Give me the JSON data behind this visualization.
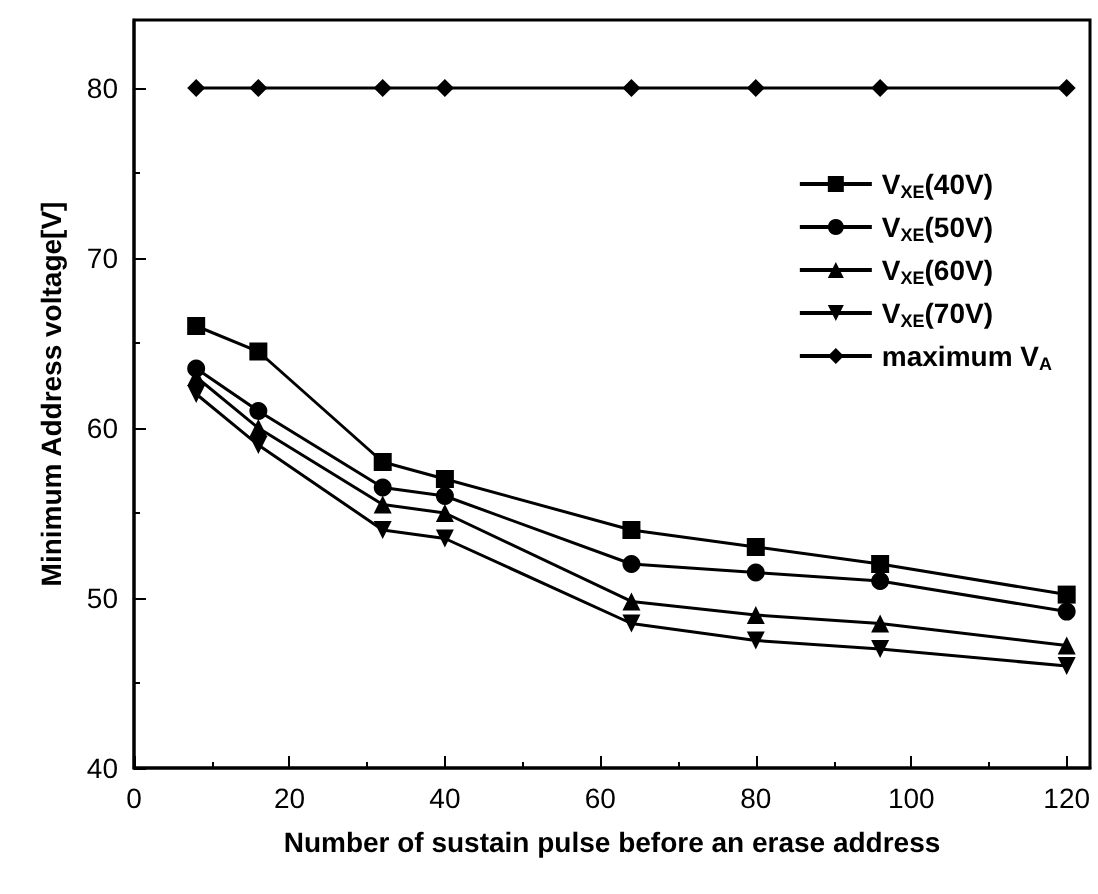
{
  "chart_data": {
    "type": "line",
    "xlabel": "Number of sustain pulse before an erase address",
    "ylabel": "Minimum Address voltage[V]",
    "x": [
      8,
      16,
      32,
      40,
      64,
      80,
      96,
      120
    ],
    "series": [
      {
        "name": "V$_{XE}$(40V)",
        "color": "#000000",
        "marker": "square",
        "values": [
          66,
          64.5,
          58,
          57,
          54,
          53,
          52,
          50.2
        ]
      },
      {
        "name": "V$_{XE}$(50V)",
        "color": "#000000",
        "marker": "circle",
        "values": [
          63.5,
          61,
          56.5,
          56,
          52,
          51.5,
          51,
          49.2
        ]
      },
      {
        "name": "V$_{XE}$(60V)",
        "color": "#000000",
        "marker": "triangle",
        "values": [
          63,
          60,
          55.5,
          55,
          49.8,
          49,
          48.5,
          47.2
        ]
      },
      {
        "name": "V$_{XE}$(70V)",
        "color": "#000000",
        "marker": "triangle-down",
        "values": [
          62,
          59,
          54,
          53.5,
          48.5,
          47.5,
          47,
          46
        ]
      },
      {
        "name": "maximum V$_{A}$",
        "color": "#000000",
        "marker": "diamond",
        "values": [
          80,
          80,
          80,
          80,
          80,
          80,
          80,
          80
        ]
      }
    ],
    "xlim": [
      0,
      123
    ],
    "xticks": [
      0,
      20,
      40,
      60,
      80,
      100,
      120
    ],
    "ylim": [
      40,
      84
    ],
    "yticks": [
      40,
      50,
      60,
      70,
      80
    ],
    "grid": false,
    "legend": "top right",
    "line_style": "solid"
  }
}
